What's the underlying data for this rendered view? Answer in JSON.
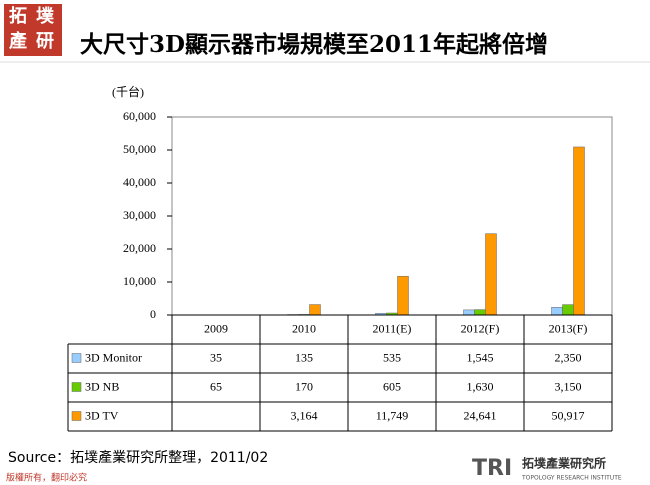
{
  "logo": {
    "chars": [
      "拓",
      "墣",
      "產",
      "研"
    ]
  },
  "title": "大尺寸3D顯示器市場規模至2011年起將倍增",
  "chart_data": {
    "type": "bar",
    "y_label": "(千台)",
    "categories": [
      "2009",
      "2010",
      "2011(E)",
      "2012(F)",
      "2013(F)"
    ],
    "series": [
      {
        "name": "3D Monitor",
        "color": "#99ccff",
        "values": [
          35,
          135,
          535,
          1545,
          2350
        ],
        "value_labels": [
          "35",
          "135",
          "535",
          "1,545",
          "2,350"
        ]
      },
      {
        "name": "3D NB",
        "color": "#66cc00",
        "values": [
          65,
          170,
          605,
          1630,
          3150
        ],
        "value_labels": [
          "65",
          "170",
          "605",
          "1,630",
          "3,150"
        ]
      },
      {
        "name": "3D TV",
        "color": "#ff9900",
        "values": [
          null,
          3164,
          11749,
          24641,
          50917
        ],
        "value_labels": [
          null,
          "3,164",
          "11,749",
          "24,641",
          "50,917"
        ]
      }
    ],
    "ylim": [
      0,
      60000
    ],
    "yticks": [
      0,
      {
        "value": 10000,
        "label": "10,000"
      },
      {
        "value": 20000,
        "label": "20,000"
      },
      {
        "value": 30000,
        "label": "30,000"
      },
      {
        "value": 40000,
        "label": "40,000"
      },
      {
        "value": 50000,
        "label": "50,000"
      },
      {
        "value": 60000,
        "label": "60,000"
      }
    ],
    "grid": false
  },
  "source": "Source：拓墣產業研究所整理，2011/02",
  "copyright": "版權所有，翻印必究",
  "footer_logo": {
    "mark": "TRI",
    "name": "拓墣產業研究所",
    "subtitle": "TOPOLOGY RESEARCH INSTITUTE"
  }
}
